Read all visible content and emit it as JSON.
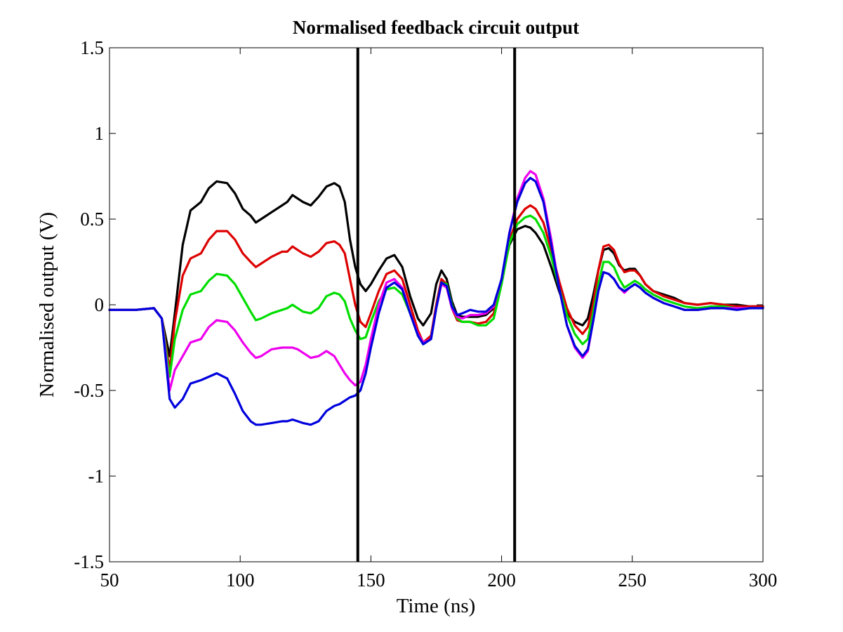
{
  "chart_data": {
    "type": "line",
    "title": "Normalised feedback circuit output",
    "xlabel": "Time (ns)",
    "ylabel": "Normalised output (V)",
    "xlim": [
      50,
      300
    ],
    "ylim": [
      -1.5,
      1.5
    ],
    "xticks": [
      50,
      100,
      150,
      200,
      250,
      300
    ],
    "xtick_labels": [
      "50",
      "100",
      "150",
      "200",
      "250",
      "300"
    ],
    "yticks": [
      -1.5,
      -1,
      -0.5,
      0,
      0.5,
      1,
      1.5
    ],
    "ytick_labels": [
      "-1.5",
      "-1",
      "-0.5",
      "0",
      "0.5",
      "1",
      "1.5"
    ],
    "grid": false,
    "vertical_lines": [
      {
        "x": 145,
        "color": "#000000"
      },
      {
        "x": 205,
        "color": "#000000"
      }
    ],
    "series": [
      {
        "color": "#000000",
        "x": [
          50,
          60,
          67,
          70,
          73,
          75,
          78,
          81,
          85,
          88,
          91,
          95,
          98,
          101,
          104,
          106,
          108,
          112,
          116,
          118,
          120,
          122,
          124,
          127,
          130,
          133,
          136,
          138,
          140,
          142,
          144,
          146,
          148,
          150,
          153,
          156,
          159,
          162,
          165,
          168,
          170,
          173,
          175,
          177,
          179,
          181,
          183,
          185,
          188,
          191,
          194,
          197,
          200,
          203,
          206,
          209,
          211,
          213,
          216,
          219,
          222,
          225,
          228,
          231,
          233,
          235,
          237,
          239,
          241,
          243,
          245,
          247,
          249,
          251,
          253,
          255,
          258,
          262,
          266,
          270,
          275,
          280,
          285,
          290,
          295,
          300
        ],
        "y": [
          -0.03,
          -0.03,
          -0.02,
          -0.08,
          -0.3,
          -0.05,
          0.35,
          0.55,
          0.6,
          0.68,
          0.72,
          0.71,
          0.65,
          0.56,
          0.52,
          0.48,
          0.5,
          0.54,
          0.58,
          0.6,
          0.64,
          0.62,
          0.6,
          0.58,
          0.63,
          0.69,
          0.71,
          0.69,
          0.6,
          0.38,
          0.22,
          0.12,
          0.08,
          0.12,
          0.2,
          0.27,
          0.29,
          0.22,
          0.05,
          -0.08,
          -0.12,
          -0.05,
          0.12,
          0.2,
          0.15,
          0.02,
          -0.06,
          -0.07,
          -0.07,
          -0.07,
          -0.06,
          -0.02,
          0.15,
          0.35,
          0.44,
          0.46,
          0.45,
          0.42,
          0.35,
          0.22,
          0.08,
          -0.05,
          -0.1,
          -0.12,
          -0.08,
          0.05,
          0.2,
          0.32,
          0.33,
          0.3,
          0.23,
          0.2,
          0.21,
          0.21,
          0.17,
          0.12,
          0.08,
          0.06,
          0.04,
          0.01,
          0.0,
          0.01,
          0.0,
          0.0,
          -0.01,
          -0.01
        ]
      },
      {
        "color": "#dd0000",
        "x": [
          50,
          60,
          67,
          70,
          73,
          75,
          78,
          81,
          85,
          88,
          91,
          95,
          98,
          101,
          104,
          106,
          108,
          112,
          116,
          118,
          120,
          122,
          124,
          127,
          130,
          133,
          136,
          138,
          140,
          142,
          144,
          146,
          148,
          150,
          153,
          156,
          159,
          162,
          165,
          168,
          170,
          173,
          175,
          177,
          179,
          181,
          183,
          185,
          188,
          191,
          194,
          197,
          200,
          203,
          206,
          209,
          211,
          213,
          216,
          219,
          222,
          225,
          228,
          231,
          233,
          235,
          237,
          239,
          241,
          243,
          245,
          247,
          249,
          251,
          253,
          255,
          258,
          262,
          266,
          270,
          275,
          280,
          285,
          290,
          295,
          300
        ],
        "y": [
          -0.03,
          -0.03,
          -0.02,
          -0.08,
          -0.38,
          -0.1,
          0.17,
          0.27,
          0.3,
          0.38,
          0.43,
          0.43,
          0.38,
          0.3,
          0.25,
          0.22,
          0.24,
          0.28,
          0.31,
          0.31,
          0.34,
          0.32,
          0.3,
          0.28,
          0.31,
          0.36,
          0.37,
          0.35,
          0.3,
          0.15,
          0.0,
          -0.1,
          -0.13,
          -0.05,
          0.08,
          0.18,
          0.2,
          0.15,
          0.0,
          -0.15,
          -0.22,
          -0.18,
          0.0,
          0.15,
          0.12,
          -0.02,
          -0.09,
          -0.1,
          -0.1,
          -0.11,
          -0.1,
          -0.05,
          0.15,
          0.38,
          0.5,
          0.56,
          0.58,
          0.56,
          0.48,
          0.32,
          0.14,
          -0.02,
          -0.12,
          -0.17,
          -0.13,
          0.0,
          0.2,
          0.34,
          0.35,
          0.32,
          0.24,
          0.19,
          0.2,
          0.2,
          0.17,
          0.12,
          0.08,
          0.05,
          0.03,
          0.01,
          0.0,
          0.01,
          0.0,
          -0.01,
          -0.01,
          -0.01
        ]
      },
      {
        "color": "#00dd00",
        "x": [
          50,
          60,
          67,
          70,
          73,
          75,
          78,
          81,
          85,
          88,
          91,
          95,
          98,
          101,
          104,
          106,
          108,
          112,
          116,
          118,
          120,
          122,
          124,
          127,
          130,
          133,
          136,
          138,
          140,
          142,
          144,
          146,
          148,
          150,
          153,
          156,
          159,
          162,
          165,
          168,
          170,
          173,
          175,
          177,
          179,
          181,
          183,
          185,
          188,
          191,
          194,
          197,
          200,
          203,
          206,
          209,
          211,
          213,
          216,
          219,
          222,
          225,
          228,
          231,
          233,
          235,
          237,
          239,
          241,
          243,
          245,
          247,
          249,
          251,
          253,
          255,
          258,
          262,
          266,
          270,
          275,
          280,
          285,
          290,
          295,
          300
        ],
        "y": [
          -0.03,
          -0.03,
          -0.02,
          -0.08,
          -0.42,
          -0.2,
          -0.03,
          0.06,
          0.08,
          0.14,
          0.18,
          0.17,
          0.12,
          0.04,
          -0.04,
          -0.09,
          -0.08,
          -0.05,
          -0.03,
          -0.02,
          0.0,
          -0.02,
          -0.04,
          -0.05,
          -0.02,
          0.05,
          0.07,
          0.06,
          0.02,
          -0.08,
          -0.15,
          -0.2,
          -0.19,
          -0.1,
          0.02,
          0.09,
          0.1,
          0.06,
          -0.05,
          -0.18,
          -0.23,
          -0.2,
          -0.02,
          0.13,
          0.12,
          0.0,
          -0.08,
          -0.1,
          -0.1,
          -0.12,
          -0.12,
          -0.08,
          0.12,
          0.36,
          0.47,
          0.51,
          0.52,
          0.5,
          0.42,
          0.28,
          0.1,
          -0.06,
          -0.17,
          -0.23,
          -0.2,
          -0.05,
          0.12,
          0.25,
          0.25,
          0.22,
          0.15,
          0.1,
          0.12,
          0.14,
          0.12,
          0.09,
          0.06,
          0.03,
          0.01,
          -0.01,
          -0.02,
          -0.01,
          -0.01,
          -0.02,
          -0.02,
          -0.02
        ]
      },
      {
        "color": "#ee00ee",
        "x": [
          50,
          60,
          67,
          70,
          73,
          75,
          78,
          81,
          85,
          88,
          91,
          95,
          98,
          101,
          104,
          106,
          108,
          112,
          116,
          118,
          120,
          122,
          124,
          127,
          130,
          133,
          136,
          138,
          140,
          142,
          144,
          146,
          148,
          150,
          153,
          156,
          159,
          162,
          165,
          168,
          170,
          173,
          175,
          177,
          179,
          181,
          183,
          185,
          188,
          191,
          194,
          197,
          200,
          203,
          206,
          209,
          211,
          213,
          216,
          219,
          222,
          225,
          228,
          231,
          233,
          235,
          237,
          239,
          241,
          243,
          245,
          247,
          249,
          251,
          253,
          255,
          258,
          262,
          266,
          270,
          275,
          280,
          285,
          290,
          295,
          300
        ],
        "y": [
          -0.03,
          -0.03,
          -0.02,
          -0.08,
          -0.5,
          -0.38,
          -0.3,
          -0.22,
          -0.2,
          -0.13,
          -0.09,
          -0.1,
          -0.15,
          -0.22,
          -0.28,
          -0.31,
          -0.3,
          -0.26,
          -0.25,
          -0.25,
          -0.25,
          -0.26,
          -0.28,
          -0.31,
          -0.3,
          -0.27,
          -0.3,
          -0.35,
          -0.4,
          -0.44,
          -0.47,
          -0.45,
          -0.35,
          -0.2,
          0.0,
          0.13,
          0.15,
          0.1,
          -0.05,
          -0.17,
          -0.22,
          -0.2,
          -0.02,
          0.12,
          0.1,
          -0.02,
          -0.07,
          -0.08,
          -0.06,
          -0.06,
          -0.05,
          -0.01,
          0.15,
          0.42,
          0.62,
          0.74,
          0.78,
          0.76,
          0.62,
          0.38,
          0.1,
          -0.12,
          -0.25,
          -0.31,
          -0.27,
          -0.1,
          0.08,
          0.19,
          0.18,
          0.15,
          0.1,
          0.07,
          0.1,
          0.12,
          0.1,
          0.07,
          0.04,
          0.01,
          -0.01,
          -0.03,
          -0.03,
          -0.02,
          -0.02,
          -0.02,
          -0.02,
          -0.02
        ]
      },
      {
        "color": "#0000dd",
        "x": [
          50,
          60,
          67,
          70,
          73,
          75,
          78,
          81,
          85,
          88,
          91,
          95,
          98,
          101,
          104,
          106,
          108,
          112,
          116,
          118,
          120,
          122,
          124,
          127,
          130,
          133,
          136,
          138,
          140,
          142,
          144,
          146,
          148,
          150,
          153,
          156,
          159,
          162,
          165,
          168,
          170,
          173,
          175,
          177,
          179,
          181,
          183,
          185,
          188,
          191,
          194,
          197,
          200,
          203,
          206,
          209,
          211,
          213,
          216,
          219,
          222,
          225,
          228,
          231,
          233,
          235,
          237,
          239,
          241,
          243,
          245,
          247,
          249,
          251,
          253,
          255,
          258,
          262,
          266,
          270,
          275,
          280,
          285,
          290,
          295,
          300
        ],
        "y": [
          -0.03,
          -0.03,
          -0.02,
          -0.08,
          -0.55,
          -0.6,
          -0.55,
          -0.46,
          -0.44,
          -0.42,
          -0.4,
          -0.43,
          -0.52,
          -0.62,
          -0.68,
          -0.7,
          -0.7,
          -0.69,
          -0.68,
          -0.68,
          -0.67,
          -0.68,
          -0.69,
          -0.7,
          -0.68,
          -0.62,
          -0.59,
          -0.58,
          -0.56,
          -0.54,
          -0.53,
          -0.5,
          -0.4,
          -0.25,
          -0.05,
          0.1,
          0.13,
          0.09,
          -0.05,
          -0.18,
          -0.23,
          -0.2,
          -0.02,
          0.13,
          0.11,
          -0.01,
          -0.06,
          -0.05,
          -0.03,
          -0.04,
          -0.04,
          0.0,
          0.15,
          0.42,
          0.6,
          0.71,
          0.74,
          0.72,
          0.6,
          0.35,
          0.1,
          -0.12,
          -0.24,
          -0.3,
          -0.26,
          -0.1,
          0.08,
          0.19,
          0.18,
          0.15,
          0.1,
          0.08,
          0.1,
          0.12,
          0.1,
          0.07,
          0.04,
          0.01,
          -0.01,
          -0.03,
          -0.03,
          -0.02,
          -0.02,
          -0.03,
          -0.02,
          -0.02
        ]
      }
    ]
  }
}
